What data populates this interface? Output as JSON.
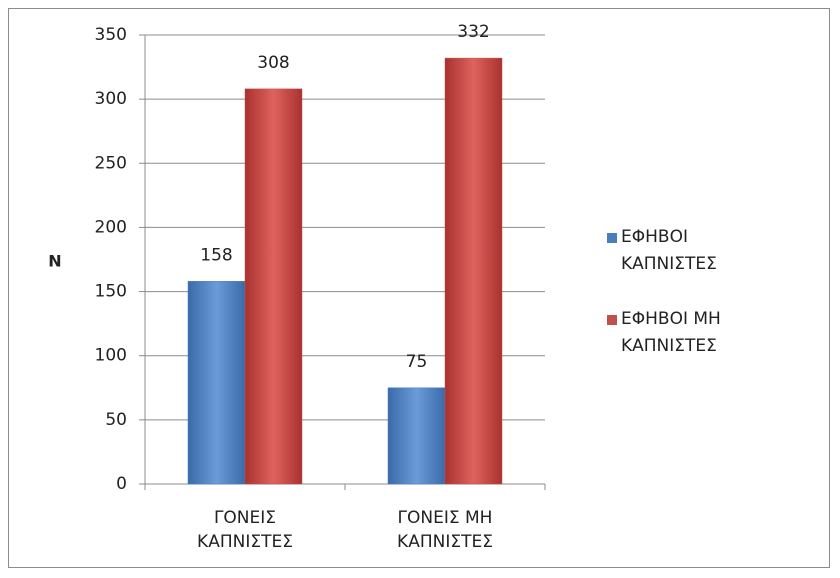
{
  "chart_data": {
    "type": "bar",
    "y_label": "N",
    "categories": [
      "ΓΟΝΕΙΣ ΚΑΠΝΙΣΤΕΣ",
      "ΓΟΝΕΙΣ ΜΗ ΚΑΠΝΙΣΤΕΣ"
    ],
    "series": [
      {
        "name": "ΕΦΗΒΟΙ ΚΑΠΝΙΣΤΕΣ",
        "color": "#4a7ebb",
        "values": [
          158,
          75
        ]
      },
      {
        "name": "ΕΦΗΒΟΙ ΜΗ ΚΑΠΝΙΣΤΕΣ",
        "color": "#c0504d",
        "values": [
          308,
          332
        ]
      }
    ],
    "ylim": [
      0,
      350
    ],
    "yticks": [
      0,
      50,
      100,
      150,
      200,
      250,
      300,
      350
    ],
    "grid": true,
    "legend": "right"
  }
}
